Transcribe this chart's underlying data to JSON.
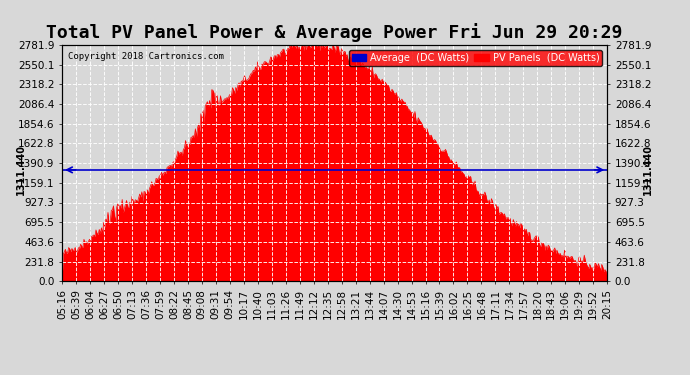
{
  "title": "Total PV Panel Power & Average Power Fri Jun 29 20:29",
  "copyright": "Copyright 2018 Cartronics.com",
  "legend_avg": "Average  (DC Watts)",
  "legend_pv": "PV Panels  (DC Watts)",
  "avg_value": 1311.44,
  "y_max": 2781.9,
  "yticks": [
    0.0,
    231.8,
    463.6,
    695.5,
    927.3,
    1159.1,
    1390.9,
    1622.8,
    1854.6,
    2086.4,
    2318.2,
    2550.1,
    2781.9
  ],
  "background_color": "#d8d8d8",
  "fill_color": "#ff0000",
  "avg_line_color": "#0000cc",
  "grid_color": "#ffffff",
  "title_fontsize": 13,
  "axis_fontsize": 7.5,
  "xtick_labels": [
    "05:16",
    "05:39",
    "06:04",
    "06:27",
    "06:50",
    "07:13",
    "07:36",
    "07:59",
    "08:22",
    "08:45",
    "09:08",
    "09:31",
    "09:54",
    "10:17",
    "10:40",
    "11:03",
    "11:26",
    "11:49",
    "12:12",
    "12:35",
    "12:58",
    "13:21",
    "13:44",
    "14:07",
    "14:30",
    "14:53",
    "15:16",
    "15:39",
    "16:02",
    "16:25",
    "16:48",
    "17:11",
    "17:34",
    "17:57",
    "18:20",
    "18:43",
    "19:06",
    "19:29",
    "19:52",
    "20:15"
  ],
  "n_points": 500
}
